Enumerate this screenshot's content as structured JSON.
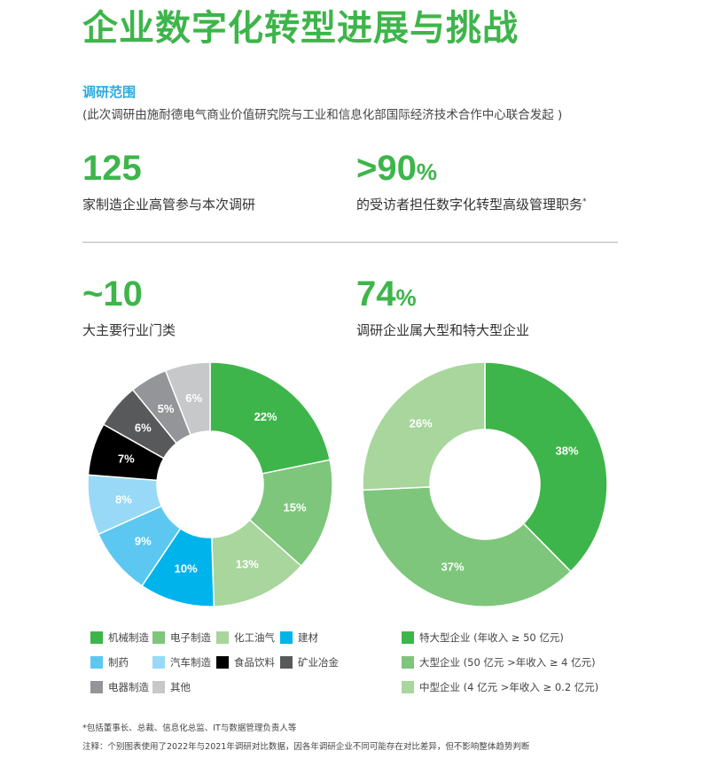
{
  "title": "企业数字化转型进展与挑战",
  "scope": {
    "label": "调研范围",
    "note": "(此次调研由施耐德电气商业价值研究院与工业和信息化部国际经济技术合作中心联合发起 )"
  },
  "stats": [
    {
      "value": "125",
      "unit": "",
      "desc": "家制造企业高管参与本次调研",
      "mark": ""
    },
    {
      "value": ">90",
      "unit": "%",
      "desc": "的受访者担任数字化转型高级管理职务",
      "mark": "*"
    },
    {
      "value": "~10",
      "unit": "",
      "desc": "大主要行业门类",
      "mark": ""
    },
    {
      "value": "74",
      "unit": "%",
      "desc": "调研企业属大型和特大型企业",
      "mark": ""
    }
  ],
  "chart_data": [
    {
      "type": "pie",
      "donut": true,
      "categories": [
        "机械制造",
        "电子制造",
        "化工油气",
        "建材",
        "制药",
        "汽车制造",
        "食品饮料",
        "矿业冶金",
        "电器制造",
        "其他"
      ],
      "values": [
        22,
        15,
        13,
        10,
        9,
        8,
        7,
        6,
        5,
        6
      ],
      "labels": [
        "22%",
        "15%",
        "13%",
        "10%",
        "9%",
        "8%",
        "7%",
        "6%",
        "5%",
        "6%"
      ],
      "colors": [
        "#3DB54A",
        "#7DC67B",
        "#A8D69D",
        "#00B4EB",
        "#5CC8F1",
        "#98D9F7",
        "#000000",
        "#58595B",
        "#939598",
        "#C7C8CA"
      ]
    },
    {
      "type": "pie",
      "donut": true,
      "categories": [
        "特大型企业 (年收入 ≥ 50 亿元)",
        "大型企业 (50 亿元 >年收入 ≥ 4 亿元)",
        "中型企业 (4 亿元 >年收入 ≥ 0.2 亿元)"
      ],
      "values": [
        38,
        37,
        26
      ],
      "labels": [
        "38%",
        "37%",
        "26%"
      ],
      "colors": [
        "#3DB54A",
        "#7DC67B",
        "#A8D69D"
      ]
    }
  ],
  "footnotes": [
    "*包括董事长、总裁、信息化总监、IT与数据管理负责人等",
    "注释：个别图表使用了2022年与2021年调研对比数据，因各年调研企业不同可能存在对比差异，但不影响整体趋势判断"
  ]
}
